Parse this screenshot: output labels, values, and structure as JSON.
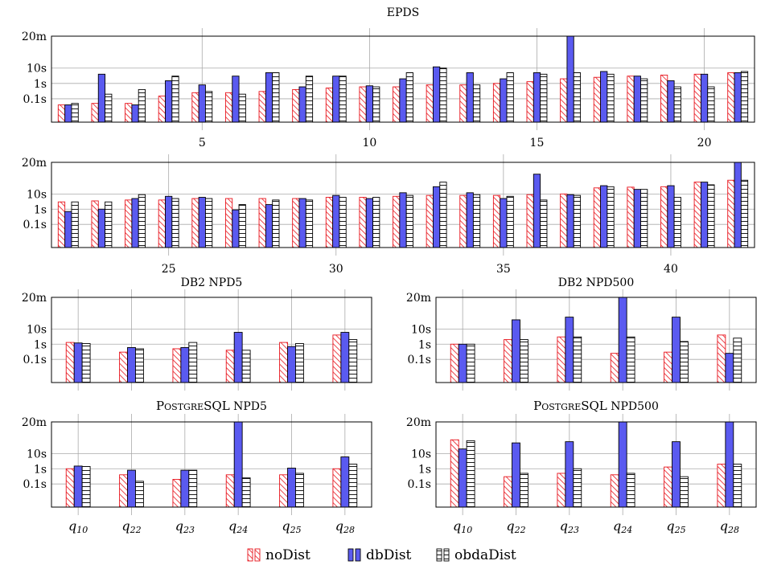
{
  "legend": [
    {
      "key": "noDist",
      "label": "noDist"
    },
    {
      "key": "dbDist",
      "label": "dbDist"
    },
    {
      "key": "obdaDist",
      "label": "obdaDist"
    }
  ],
  "colors": {
    "noDist": "#e8141c",
    "dbDist": "#5a5af0",
    "obdaDist": "#000000",
    "grid": "#aaaaaa"
  },
  "chart_data": [
    {
      "id": "epds-a",
      "type": "bar",
      "title": "EPDS",
      "yscale": "log",
      "y_unit": "seconds",
      "ylim_seconds": [
        0.003,
        1200
      ],
      "yticks": [
        {
          "label": "0.1s",
          "value": 0.1
        },
        {
          "label": "1s",
          "value": 1
        },
        {
          "label": "10s",
          "value": 10
        },
        {
          "label": "20m",
          "value": 1200
        }
      ],
      "x": [
        1,
        2,
        3,
        4,
        5,
        6,
        7,
        8,
        9,
        10,
        11,
        12,
        13,
        14,
        15,
        16,
        17,
        18,
        19,
        20,
        21
      ],
      "xtick_labels": [
        "5",
        "10",
        "15",
        "20"
      ],
      "xtick_values": [
        5,
        10,
        15,
        20
      ],
      "series": [
        {
          "name": "noDist",
          "values": [
            0.04,
            0.05,
            0.05,
            0.15,
            0.25,
            0.25,
            0.3,
            0.4,
            0.5,
            0.6,
            0.6,
            0.8,
            0.8,
            1,
            1.3,
            2,
            2.5,
            3,
            3.5,
            4,
            5
          ]
        },
        {
          "name": "dbDist",
          "values": [
            0.04,
            4,
            0.04,
            1.5,
            0.8,
            3,
            5,
            0.6,
            3,
            0.7,
            2,
            12,
            5,
            2,
            5,
            1200,
            6,
            3,
            1.5,
            4,
            5
          ]
        },
        {
          "name": "obdaDist",
          "values": [
            0.05,
            0.2,
            0.4,
            3,
            0.3,
            0.2,
            5,
            3,
            3,
            0.6,
            5,
            10,
            0.8,
            5,
            4,
            5,
            4,
            2,
            0.6,
            0.6,
            6
          ]
        }
      ]
    },
    {
      "id": "epds-b",
      "type": "bar",
      "title": "",
      "yscale": "log",
      "y_unit": "seconds",
      "ylim_seconds": [
        0.003,
        1200
      ],
      "yticks": [
        {
          "label": "0.1s",
          "value": 0.1
        },
        {
          "label": "1s",
          "value": 1
        },
        {
          "label": "10s",
          "value": 10
        },
        {
          "label": "20m",
          "value": 1200
        }
      ],
      "x": [
        22,
        23,
        24,
        25,
        26,
        27,
        28,
        29,
        30,
        31,
        32,
        33,
        34,
        35,
        36,
        37,
        38,
        39,
        40,
        41,
        42
      ],
      "xtick_labels": [
        "25",
        "30",
        "35",
        "40"
      ],
      "xtick_values": [
        25,
        30,
        35,
        40
      ],
      "series": [
        {
          "name": "noDist",
          "values": [
            3,
            3.5,
            4,
            4,
            5,
            5,
            5,
            5,
            6,
            6,
            7,
            8,
            8,
            8,
            9,
            10,
            25,
            28,
            30,
            60,
            80
          ]
        },
        {
          "name": "dbDist",
          "values": [
            0.7,
            1,
            5,
            7,
            6,
            0.9,
            2,
            5,
            8,
            5,
            12,
            30,
            12,
            5,
            200,
            9,
            35,
            20,
            35,
            60,
            1200
          ]
        },
        {
          "name": "obdaDist",
          "values": [
            3,
            3,
            9,
            5,
            5,
            2,
            4,
            4,
            6,
            6,
            8,
            60,
            9,
            7,
            4,
            8,
            30,
            20,
            6,
            40,
            80
          ]
        }
      ]
    },
    {
      "id": "db2-npd5",
      "type": "bar",
      "title": "DB2 NPD5",
      "yscale": "log",
      "y_unit": "seconds",
      "ylim_seconds": [
        0.003,
        1200
      ],
      "yticks": [
        {
          "label": "0.1s",
          "value": 0.1
        },
        {
          "label": "1s",
          "value": 1
        },
        {
          "label": "10s",
          "value": 10
        },
        {
          "label": "20m",
          "value": 1200
        }
      ],
      "categories": [
        "q10",
        "q22",
        "q23",
        "q24",
        "q25",
        "q28"
      ],
      "series": [
        {
          "name": "noDist",
          "values": [
            1.3,
            0.3,
            0.5,
            0.4,
            1.3,
            4
          ]
        },
        {
          "name": "dbDist",
          "values": [
            1.2,
            0.6,
            0.6,
            6,
            0.7,
            6
          ]
        },
        {
          "name": "obdaDist",
          "values": [
            1.1,
            0.5,
            1.3,
            0.4,
            1.1,
            2
          ]
        }
      ]
    },
    {
      "id": "db2-npd500",
      "type": "bar",
      "title": "DB2 NPD500",
      "yscale": "log",
      "y_unit": "seconds",
      "ylim_seconds": [
        0.003,
        1200
      ],
      "yticks": [
        {
          "label": "0.1s",
          "value": 0.1
        },
        {
          "label": "1s",
          "value": 1
        },
        {
          "label": "10s",
          "value": 10
        },
        {
          "label": "20m",
          "value": 1200
        }
      ],
      "categories": [
        "q10",
        "q22",
        "q23",
        "q24",
        "q25",
        "q28"
      ],
      "series": [
        {
          "name": "noDist",
          "values": [
            1,
            2,
            3,
            0.25,
            0.3,
            4
          ]
        },
        {
          "name": "dbDist",
          "values": [
            1,
            40,
            60,
            1200,
            60,
            0.25
          ]
        },
        {
          "name": "obdaDist",
          "values": [
            1,
            2,
            3,
            3,
            1.5,
            2.5
          ]
        }
      ]
    },
    {
      "id": "pg-npd5",
      "type": "bar",
      "title": "PostgreSQL NPD5",
      "yscale": "log",
      "y_unit": "seconds",
      "ylim_seconds": [
        0.003,
        1200
      ],
      "yticks": [
        {
          "label": "0.1s",
          "value": 0.1
        },
        {
          "label": "1s",
          "value": 1
        },
        {
          "label": "10s",
          "value": 10
        },
        {
          "label": "20m",
          "value": 1200
        }
      ],
      "categories": [
        "q10",
        "q22",
        "q23",
        "q24",
        "q25",
        "q28"
      ],
      "series": [
        {
          "name": "noDist",
          "values": [
            1,
            0.4,
            0.2,
            0.4,
            0.4,
            1
          ]
        },
        {
          "name": "dbDist",
          "values": [
            1.5,
            0.8,
            0.8,
            1200,
            1.1,
            6
          ]
        },
        {
          "name": "obdaDist",
          "values": [
            1.4,
            0.15,
            0.8,
            0.25,
            0.5,
            2
          ]
        }
      ]
    },
    {
      "id": "pg-npd500",
      "type": "bar",
      "title": "PostgreSQL NPD500",
      "yscale": "log",
      "y_unit": "seconds",
      "ylim_seconds": [
        0.003,
        1200
      ],
      "yticks": [
        {
          "label": "0.1s",
          "value": 0.1
        },
        {
          "label": "1s",
          "value": 1
        },
        {
          "label": "10s",
          "value": 10
        },
        {
          "label": "20m",
          "value": 1200
        }
      ],
      "categories": [
        "q10",
        "q22",
        "q23",
        "q24",
        "q25",
        "q28"
      ],
      "series": [
        {
          "name": "noDist",
          "values": [
            80,
            0.3,
            0.5,
            0.4,
            1.3,
            2
          ]
        },
        {
          "name": "dbDist",
          "values": [
            20,
            50,
            60,
            1200,
            60,
            1200
          ]
        },
        {
          "name": "obdaDist",
          "values": [
            70,
            0.5,
            1,
            0.5,
            0.3,
            2
          ]
        }
      ]
    }
  ]
}
